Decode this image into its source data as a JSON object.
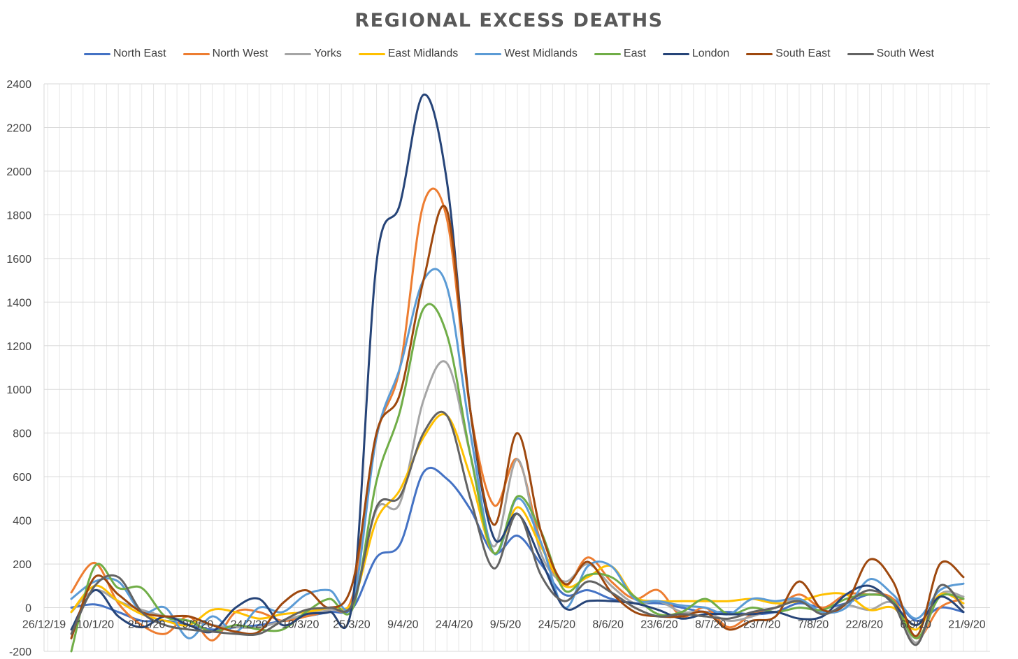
{
  "chart_data": {
    "type": "line",
    "title": "REGIONAL EXCESS DEATHS",
    "xlabel": "",
    "ylabel": "",
    "ylim": [
      -200,
      2400
    ],
    "yticks": [
      -200,
      0,
      200,
      400,
      600,
      800,
      1000,
      1200,
      1400,
      1600,
      1800,
      2000,
      2200,
      2400
    ],
    "x_tick_labels": [
      "26/12/19",
      "10/1/20",
      "25/1/20",
      "9/2/20",
      "24/2/20",
      "10/3/20",
      "25/3/20",
      "9/4/20",
      "24/4/20",
      "9/5/20",
      "24/5/20",
      "8/6/20",
      "23/6/20",
      "8/7/20",
      "23/7/20",
      "7/8/20",
      "22/8/20",
      "6/9/20",
      "21/9/20"
    ],
    "categories": [
      "27/12/19",
      "3/1/20",
      "10/1/20",
      "17/1/20",
      "24/1/20",
      "31/1/20",
      "7/2/20",
      "14/2/20",
      "21/2/20",
      "28/2/20",
      "6/3/20",
      "13/3/20",
      "20/3/20",
      "27/3/20",
      "3/4/20",
      "10/4/20",
      "17/4/20",
      "24/4/20",
      "1/5/20",
      "8/5/20",
      "15/5/20",
      "22/5/20",
      "29/5/20",
      "5/6/20",
      "12/6/20",
      "19/6/20",
      "26/6/20",
      "3/7/20",
      "10/7/20",
      "17/7/20",
      "24/7/20",
      "31/7/20",
      "7/8/20",
      "14/8/20",
      "21/8/20",
      "28/8/20",
      "4/9/20",
      "11/9/20",
      "18/9/20"
    ],
    "grid": true,
    "legend_position": "top",
    "series": [
      {
        "name": "North East",
        "color": "#4472C4",
        "values": [
          0,
          15,
          -20,
          -60,
          -60,
          -80,
          -100,
          -90,
          -80,
          -60,
          -40,
          -20,
          0,
          230,
          290,
          620,
          590,
          450,
          250,
          330,
          200,
          60,
          80,
          40,
          20,
          20,
          0,
          -20,
          -20,
          -30,
          -20,
          20,
          0,
          20,
          60,
          40,
          -60,
          0,
          -20
        ]
      },
      {
        "name": "North West",
        "color": "#ED7D31",
        "values": [
          70,
          205,
          20,
          -80,
          -120,
          -40,
          -150,
          -20,
          -20,
          -60,
          -40,
          -10,
          60,
          780,
          1100,
          1850,
          1780,
          900,
          470,
          680,
          300,
          100,
          230,
          120,
          40,
          80,
          -40,
          0,
          -90,
          -30,
          0,
          60,
          0,
          60,
          60,
          40,
          -140,
          0,
          40
        ]
      },
      {
        "name": "Yorks",
        "color": "#A5A5A5",
        "values": [
          -20,
          80,
          30,
          -10,
          -40,
          -60,
          -80,
          -90,
          -90,
          -60,
          -30,
          -10,
          30,
          450,
          480,
          950,
          1120,
          700,
          280,
          680,
          250,
          120,
          200,
          100,
          20,
          30,
          -20,
          -20,
          -60,
          -40,
          0,
          40,
          -30,
          10,
          -10,
          20,
          -160,
          60,
          50
        ]
      },
      {
        "name": "East Midlands",
        "color": "#FFC000",
        "values": [
          -20,
          100,
          30,
          -30,
          -60,
          -80,
          -10,
          -20,
          -50,
          -30,
          -20,
          0,
          30,
          400,
          540,
          780,
          880,
          600,
          250,
          460,
          280,
          100,
          140,
          190,
          50,
          30,
          30,
          30,
          30,
          40,
          20,
          30,
          60,
          60,
          -10,
          0,
          -100,
          60,
          20
        ]
      },
      {
        "name": "West Midlands",
        "color": "#5B9BD5",
        "values": [
          40,
          120,
          120,
          -20,
          0,
          -140,
          -40,
          -110,
          0,
          -20,
          60,
          80,
          30,
          780,
          1100,
          1500,
          1470,
          800,
          250,
          500,
          300,
          0,
          190,
          190,
          40,
          30,
          10,
          0,
          -30,
          40,
          30,
          40,
          -20,
          0,
          130,
          60,
          -50,
          80,
          110
        ]
      },
      {
        "name": "East",
        "color": "#70AD47",
        "values": [
          -200,
          190,
          90,
          90,
          -40,
          -60,
          -110,
          -80,
          -100,
          -100,
          -20,
          40,
          0,
          580,
          900,
          1370,
          1250,
          700,
          250,
          510,
          350,
          80,
          150,
          140,
          50,
          -30,
          -20,
          40,
          -30,
          0,
          -20,
          0,
          -10,
          40,
          60,
          30,
          -140,
          50,
          40
        ]
      },
      {
        "name": "London",
        "color": "#264478",
        "values": [
          -100,
          80,
          -40,
          -90,
          -40,
          -80,
          -110,
          0,
          40,
          -80,
          -30,
          -20,
          40,
          1580,
          1850,
          2350,
          1950,
          900,
          320,
          430,
          220,
          0,
          30,
          30,
          20,
          -10,
          -50,
          -30,
          -30,
          -30,
          -20,
          -50,
          -40,
          60,
          100,
          20,
          -80,
          50,
          -20
        ]
      },
      {
        "name": "South East",
        "color": "#9E480E",
        "values": [
          -140,
          140,
          60,
          -20,
          -40,
          -40,
          -80,
          -110,
          -110,
          20,
          80,
          0,
          120,
          800,
          980,
          1500,
          1820,
          900,
          380,
          800,
          350,
          110,
          210,
          70,
          -20,
          -40,
          -40,
          -20,
          -100,
          -60,
          -40,
          120,
          -10,
          20,
          220,
          120,
          -130,
          200,
          140
        ]
      },
      {
        "name": "South West",
        "color": "#636363",
        "values": [
          -120,
          100,
          140,
          -20,
          -80,
          -100,
          -110,
          -120,
          -120,
          -60,
          -10,
          0,
          20,
          460,
          510,
          800,
          880,
          500,
          180,
          430,
          150,
          30,
          120,
          70,
          0,
          -40,
          -30,
          -40,
          -50,
          -20,
          0,
          30,
          -30,
          20,
          80,
          20,
          -170,
          100,
          0
        ]
      }
    ]
  }
}
